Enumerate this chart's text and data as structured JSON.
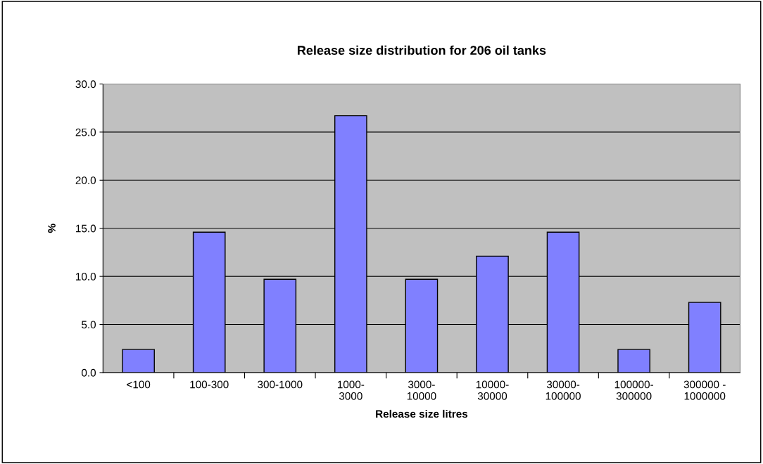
{
  "chart_data": {
    "type": "bar",
    "title": "Release size distribution for 206 oil tanks",
    "xlabel": "Release size litres",
    "ylabel": "%",
    "categories": [
      "<100",
      "100-300",
      "300-1000",
      "1000-\n3000",
      "3000-\n10000",
      "10000-\n30000",
      "30000-\n100000",
      "100000-\n300000",
      "300000 -\n1000000"
    ],
    "values": [
      2.4,
      14.6,
      9.7,
      26.7,
      9.7,
      12.1,
      14.6,
      2.4,
      7.3
    ],
    "color": "#8080ff",
    "ylim": [
      0,
      30
    ],
    "yticks": [
      {
        "value": 0,
        "label": "0.0"
      },
      {
        "value": 5,
        "label": "5.0"
      },
      {
        "value": 10,
        "label": "10.0"
      },
      {
        "value": 15,
        "label": "15.0"
      },
      {
        "value": 20,
        "label": "20.0"
      },
      {
        "value": 25,
        "label": "25.0"
      },
      {
        "value": 30,
        "label": "30.0"
      }
    ],
    "grid": "y"
  }
}
